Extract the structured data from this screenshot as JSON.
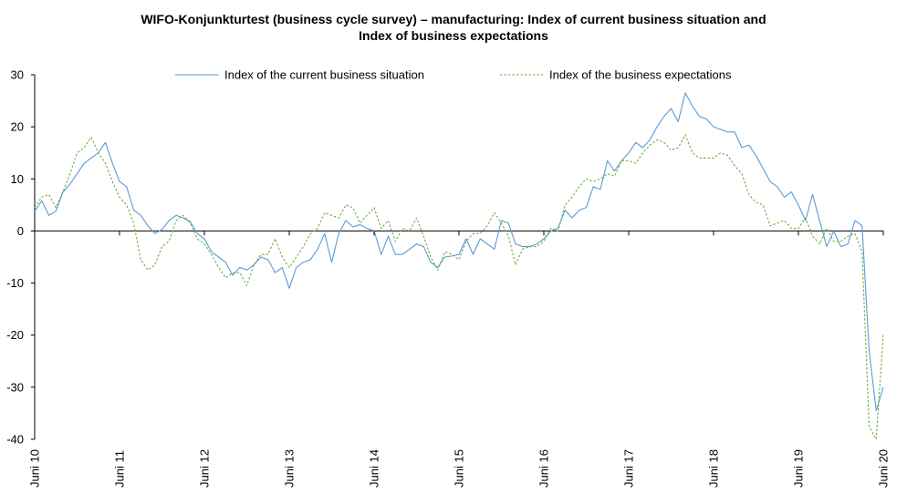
{
  "chart_data": {
    "type": "line",
    "title_line1": "WIFO-Konjunkturtest (business cycle survey) – manufacturing: Index of current business situation and",
    "title_line2": "Index of business expectations",
    "ylim": [
      -40,
      30
    ],
    "yticks": [
      30,
      20,
      10,
      0,
      -10,
      -20,
      -30,
      -40
    ],
    "x_start": "Juni 10",
    "x_end": "Juni 20",
    "xticks": [
      "Juni 10",
      "Juni 11",
      "Juni 12",
      "Juni 13",
      "Juni 14",
      "Juni 15",
      "Juni 16",
      "Juni 17",
      "Juni 18",
      "Juni 19",
      "Juni 20"
    ],
    "legend_position": "top",
    "series": [
      {
        "name": "Index of the current business situation",
        "color": "#5b9bd5",
        "style": "solid",
        "values": [
          3.8,
          5.8,
          3.0,
          3.8,
          7.5,
          9.0,
          11.0,
          13.0,
          14.0,
          15.0,
          17.0,
          13.0,
          9.5,
          8.5,
          4.0,
          3.0,
          1.0,
          -0.5,
          0.3,
          2.0,
          3.0,
          2.5,
          1.8,
          -0.5,
          -1.5,
          -4.0,
          -5.0,
          -6.0,
          -8.5,
          -7.0,
          -7.5,
          -6.5,
          -5.0,
          -5.5,
          -8.0,
          -7.0,
          -11.0,
          -7.0,
          -6.0,
          -5.5,
          -3.5,
          -0.5,
          -6.0,
          -0.5,
          2.0,
          0.8,
          1.2,
          0.5,
          0.0,
          -4.5,
          -1.0,
          -4.5,
          -4.5,
          -3.5,
          -2.5,
          -3.0,
          -6.0,
          -7.0,
          -5.0,
          -4.8,
          -4.5,
          -1.5,
          -4.5,
          -1.5,
          -2.5,
          -3.5,
          2.0,
          1.5,
          -2.5,
          -3.0,
          -3.0,
          -2.5,
          -1.5,
          0.0,
          0.5,
          4.0,
          2.5,
          4.0,
          4.5,
          8.5,
          8.0,
          13.5,
          11.5,
          13.5,
          15.0,
          17.0,
          16.0,
          17.5,
          20.0,
          22.0,
          23.5,
          21.0,
          26.5,
          24.0,
          22.0,
          21.5,
          20.0,
          19.5,
          19.0,
          19.0,
          16.0,
          16.5,
          14.5,
          12.0,
          9.5,
          8.5,
          6.5,
          7.5,
          5.0,
          2.0,
          7.0,
          2.0,
          -3.0,
          0.0,
          -3.0,
          -2.5,
          2.0,
          1.0,
          -23.0,
          -34.5,
          -30.0
        ]
      },
      {
        "name": "Index of the business expectations",
        "color": "#70ad47",
        "style": "dashed",
        "values": [
          4.5,
          6.5,
          7.0,
          4.5,
          7.5,
          11.0,
          15.0,
          16.0,
          18.0,
          15.0,
          13.0,
          9.5,
          6.5,
          5.0,
          1.5,
          -5.5,
          -7.5,
          -6.5,
          -3.0,
          -2.0,
          2.0,
          3.0,
          1.5,
          -1.5,
          -2.5,
          -4.5,
          -7.0,
          -9.0,
          -8.0,
          -8.0,
          -10.5,
          -6.5,
          -4.5,
          -4.5,
          -1.5,
          -5.0,
          -7.0,
          -5.0,
          -3.0,
          -0.5,
          0.5,
          3.5,
          3.0,
          2.5,
          5.0,
          4.5,
          1.5,
          3.0,
          4.5,
          0.5,
          2.0,
          -2.0,
          0.5,
          0.0,
          2.5,
          -1.0,
          -5.0,
          -7.5,
          -4.0,
          -4.5,
          -5.5,
          -2.0,
          -0.5,
          -0.5,
          1.0,
          3.5,
          1.5,
          -1.0,
          -6.5,
          -3.5,
          -3.0,
          -3.0,
          -2.0,
          0.5,
          0.0,
          5.0,
          6.5,
          8.5,
          10.0,
          9.5,
          10.0,
          11.0,
          10.5,
          13.5,
          13.5,
          13.0,
          15.0,
          16.5,
          17.5,
          17.0,
          15.5,
          16.0,
          18.5,
          15.0,
          14.0,
          14.0,
          14.0,
          15.0,
          14.5,
          12.5,
          11.0,
          7.0,
          5.5,
          5.0,
          1.0,
          1.5,
          2.0,
          0.5,
          0.5,
          2.5,
          -1.0,
          -2.5,
          0.5,
          -2.0,
          -2.0,
          -1.0,
          -0.5,
          -4.0,
          -37.5,
          -40.0,
          -20.0
        ]
      }
    ]
  }
}
